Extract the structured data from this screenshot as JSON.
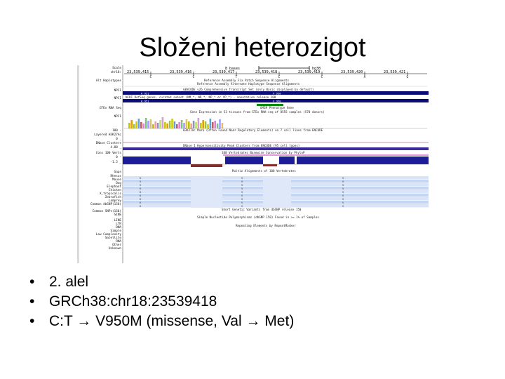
{
  "slide": {
    "title": "Složeni heterozigot",
    "bullets": [
      "2. alel",
      "GRCh38:chr18:23539418",
      "C:T → V950M (missense, Val → Met)"
    ]
  },
  "browser": {
    "scale_label": "8 bases",
    "scale_unit": "hg38",
    "positions": [
      "23,539,415",
      "23,539,416",
      "23,539,417",
      "23,539,418",
      "23,539,419",
      "23,539,420",
      "23,539,421"
    ],
    "side_labels": [
      "Scale",
      "chr18:",
      "",
      "Alt Haplotypes",
      "NPC1",
      "NPC1",
      "",
      "GTEx RNA Seq",
      "NPC1",
      "",
      "100 -",
      "Layered H3K27Ac",
      "0 _",
      "DNase Clusters",
      "4.88 _",
      "Cons 100 Verts",
      "0 -",
      "-1.5 _",
      "Gaps",
      "Rhesus",
      "Mouse",
      "Dog",
      "Elephant",
      "Chicken",
      "X_tropicalis",
      "Zebrafish",
      "Lamprey",
      "Common dbSNP(150)",
      "",
      "Common SNPs(150)",
      "SINE",
      "LINE",
      "LTR",
      "DNA",
      "Simple",
      "Low Complexity",
      "Satellite",
      "RNA",
      "Other",
      "Unknown"
    ],
    "track_captions": [
      "Reference Assembly Fix Patch Sequence Alignments",
      "Reference Assembly Alternate Haplotype Sequence Alignments",
      "GENCODE v26 Comprehensive Transcript Set (only Basic displayed by default)",
      "NCBI RefSeq genes, curated subset (NM_*, NR_*, NP_* or YP_*) - annotation release 108",
      "OMIM Phenotype Gene",
      "Gene Expression in 53 tissues from GTEx RNA-seq of 8555 samples (570 donors)",
      "H3K27Ac Mark (Often Found Near Regulatory Elements) on 7 cell lines from ENCODE",
      "DNase I Hypersensitivity Peak Clusters from ENCODE (95 cell types)",
      "100 Vertebrates Basewise Conservation by PhyloP",
      "Multiz Alignments of 100 Vertebrates",
      "Short Genetic Variants from dbSNP release 150",
      "Simple Nucleotide Polymorphisms (dbSNP 150) Found in >= 1% of Samples",
      "Repeating Elements by RepeatMasker"
    ],
    "gene_labels": [
      "K 951",
      "V 950",
      "K 951",
      "V 950"
    ],
    "sequence": [
      "C",
      "C",
      "T",
      "C",
      "C",
      "A",
      "G"
    ],
    "align_codes": [
      "K",
      "V",
      "V",
      "K",
      "K",
      "K",
      "K",
      "K",
      "K"
    ],
    "colors": {
      "gene_blue": "#0c0c78",
      "h3k_purple": "#7e1ea0",
      "cons_blue": "#1c1c96",
      "cons_red": "#8a2a2a",
      "align_band": "#d8e4f8",
      "green_bar": "#0a8a0a"
    }
  }
}
